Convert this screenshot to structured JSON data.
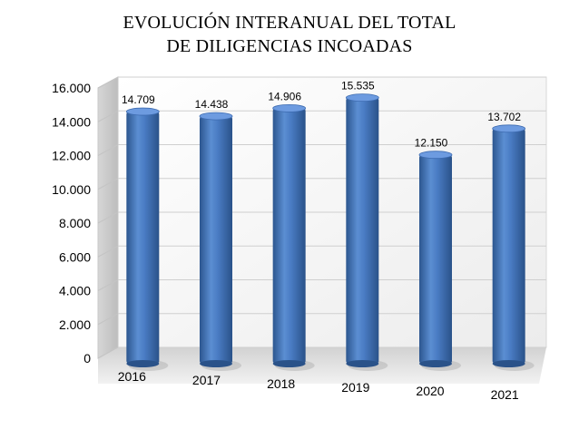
{
  "chart_data": {
    "type": "bar",
    "title_lines": [
      "EVOLUCIÓN INTERANUAL DEL TOTAL",
      "DE DILIGENCIAS INCOADAS"
    ],
    "categories": [
      "2016",
      "2017",
      "2018",
      "2019",
      "2020",
      "2021"
    ],
    "values": [
      14709,
      14438,
      14906,
      15535,
      12150,
      13702
    ],
    "value_labels": [
      "14.709",
      "14.438",
      "14.906",
      "15.535",
      "12.150",
      "13.702"
    ],
    "ylim": [
      0,
      16000
    ],
    "yticks": [
      0,
      2000,
      4000,
      6000,
      8000,
      10000,
      12000,
      14000,
      16000
    ],
    "ytick_labels": [
      "0",
      "2.000",
      "4.000",
      "6.000",
      "8.000",
      "10.000",
      "12.000",
      "14.000",
      "16.000"
    ],
    "grid": true,
    "legend": "none",
    "style": "3d-cylinder",
    "bar_color": "#4a7cc4",
    "bar_dark_color": "#2c568f",
    "bar_light_color": "#7ea8e0"
  }
}
